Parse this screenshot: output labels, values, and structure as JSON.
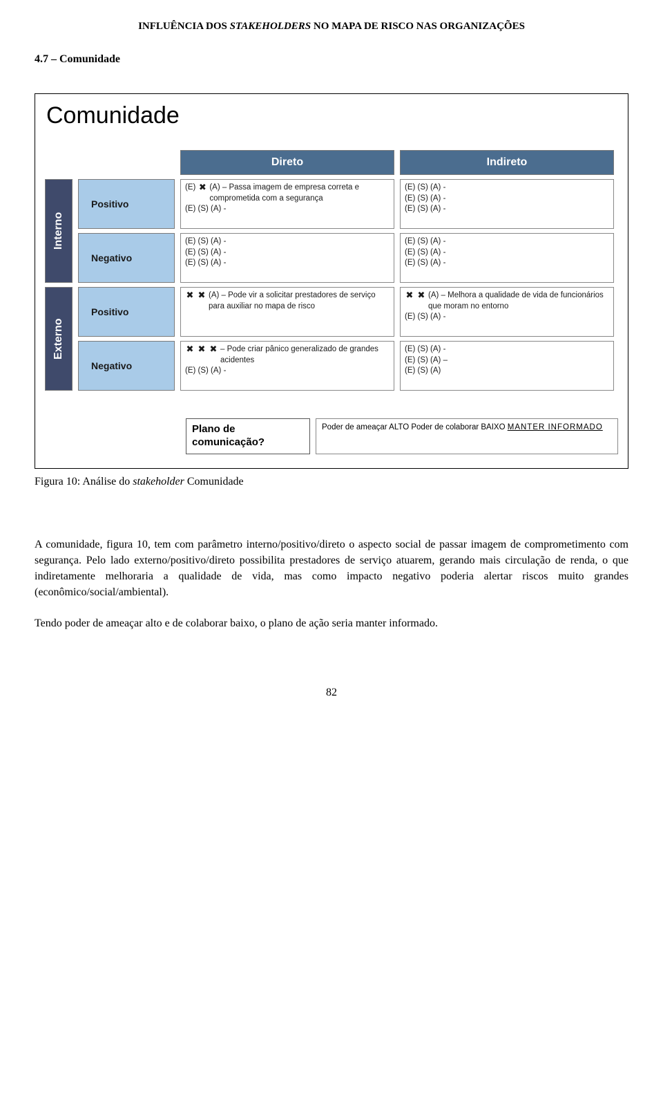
{
  "running_header_a": "INFLUÊNCIA DOS ",
  "running_header_b": "STAKEHOLDERS",
  "running_header_c": " NO MAPA DE RISCO NAS ORGANIZAÇÕES",
  "section_heading": "4.7 – Comunidade",
  "figure": {
    "title": "Comunidade",
    "headers": {
      "direto": "Direto",
      "indireto": "Indireto"
    },
    "vlabels": {
      "interno": "Interno",
      "externo": "Externo"
    },
    "posneg": {
      "positivo": "Positivo",
      "negativo": "Negativo"
    },
    "blank_triplet": "(E) (S) (A) -",
    "blank_triplet_dash": "(E) (S) (A) –",
    "blank_triplet_nodash": "(E) (S) (A)",
    "cells": {
      "int_pos_dir_lead": "(E)",
      "int_pos_dir_mark": "✖",
      "int_pos_dir_text": "(A) – Passa imagem de empresa correta e comprometida com a segurança",
      "ext_pos_dir_mark1": "✖",
      "ext_pos_dir_mark2": "✖",
      "ext_pos_dir_text": "(A) – Pode vir a solicitar prestadores de serviço para auxiliar no mapa de risco",
      "ext_pos_ind_mark1": "✖",
      "ext_pos_ind_mark2": "✖",
      "ext_pos_ind_text": "(A) – Melhora a qualidade de vida de funcionários que moram no entorno",
      "ext_neg_dir_mark1": "✖",
      "ext_neg_dir_mark2": "✖",
      "ext_neg_dir_mark3": "✖",
      "ext_neg_dir_text": "– Pode criar pânico generalizado de grandes acidentes"
    },
    "plan": {
      "label_a": "Plano de",
      "label_b": "comunicação?",
      "line1": "Poder de ameaçar ALTO",
      "line2": "Poder de colaborar BAIXO",
      "line3": "MANTER   INFORMADO"
    }
  },
  "caption_a": "Figura 10: Análise do ",
  "caption_b": "stakeholder",
  "caption_c": " Comunidade",
  "para1": "A comunidade, figura 10, tem com parâmetro interno/positivo/direto o aspecto social de passar imagem de comprometimento com segurança. Pelo lado externo/positivo/direto possibilita prestadores de serviço atuarem, gerando mais circulação de renda, o que indiretamente melhoraria a qualidade de vida, mas como impacto negativo poderia alertar riscos muito grandes (econômico/social/ambiental).",
  "para2": "Tendo poder de ameaçar alto e de colaborar baixo, o plano de ação seria manter informado.",
  "page_number": "82",
  "colors": {
    "header_bg": "#4b6d8f",
    "vlabel_bg": "#3f4a6b",
    "posneg_bg": "#a9cbe8"
  }
}
